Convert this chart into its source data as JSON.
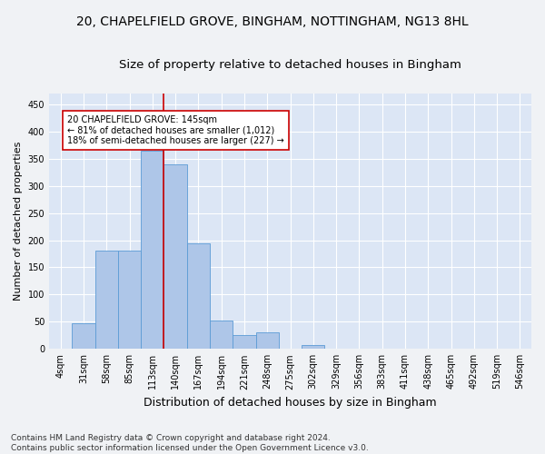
{
  "title1": "20, CHAPELFIELD GROVE, BINGHAM, NOTTINGHAM, NG13 8HL",
  "title2": "Size of property relative to detached houses in Bingham",
  "xlabel": "Distribution of detached houses by size in Bingham",
  "ylabel": "Number of detached properties",
  "footnote": "Contains HM Land Registry data © Crown copyright and database right 2024.\nContains public sector information licensed under the Open Government Licence v3.0.",
  "bin_labels": [
    "4sqm",
    "31sqm",
    "58sqm",
    "85sqm",
    "113sqm",
    "140sqm",
    "167sqm",
    "194sqm",
    "221sqm",
    "248sqm",
    "275sqm",
    "302sqm",
    "329sqm",
    "356sqm",
    "383sqm",
    "411sqm",
    "438sqm",
    "465sqm",
    "492sqm",
    "519sqm",
    "546sqm"
  ],
  "bar_heights": [
    1,
    47,
    180,
    180,
    365,
    340,
    195,
    52,
    25,
    30,
    0,
    8,
    1,
    0,
    0,
    0,
    0,
    0,
    0,
    0,
    1
  ],
  "bar_color": "#aec6e8",
  "bar_edge_color": "#5b9bd5",
  "vline_x": 4.5,
  "vline_color": "#cc0000",
  "annotation_text": "20 CHAPELFIELD GROVE: 145sqm\n← 81% of detached houses are smaller (1,012)\n18% of semi-detached houses are larger (227) →",
  "annotation_box_color": "#ffffff",
  "annotation_box_edge": "#cc0000",
  "ylim": [
    0,
    470
  ],
  "yticks": [
    0,
    50,
    100,
    150,
    200,
    250,
    300,
    350,
    400,
    450
  ],
  "fig_background": "#f0f2f5",
  "plot_background": "#dce6f5",
  "grid_color": "#ffffff",
  "title1_fontsize": 10,
  "title2_fontsize": 9.5,
  "xlabel_fontsize": 9,
  "ylabel_fontsize": 8,
  "tick_fontsize": 7,
  "footnote_fontsize": 6.5
}
